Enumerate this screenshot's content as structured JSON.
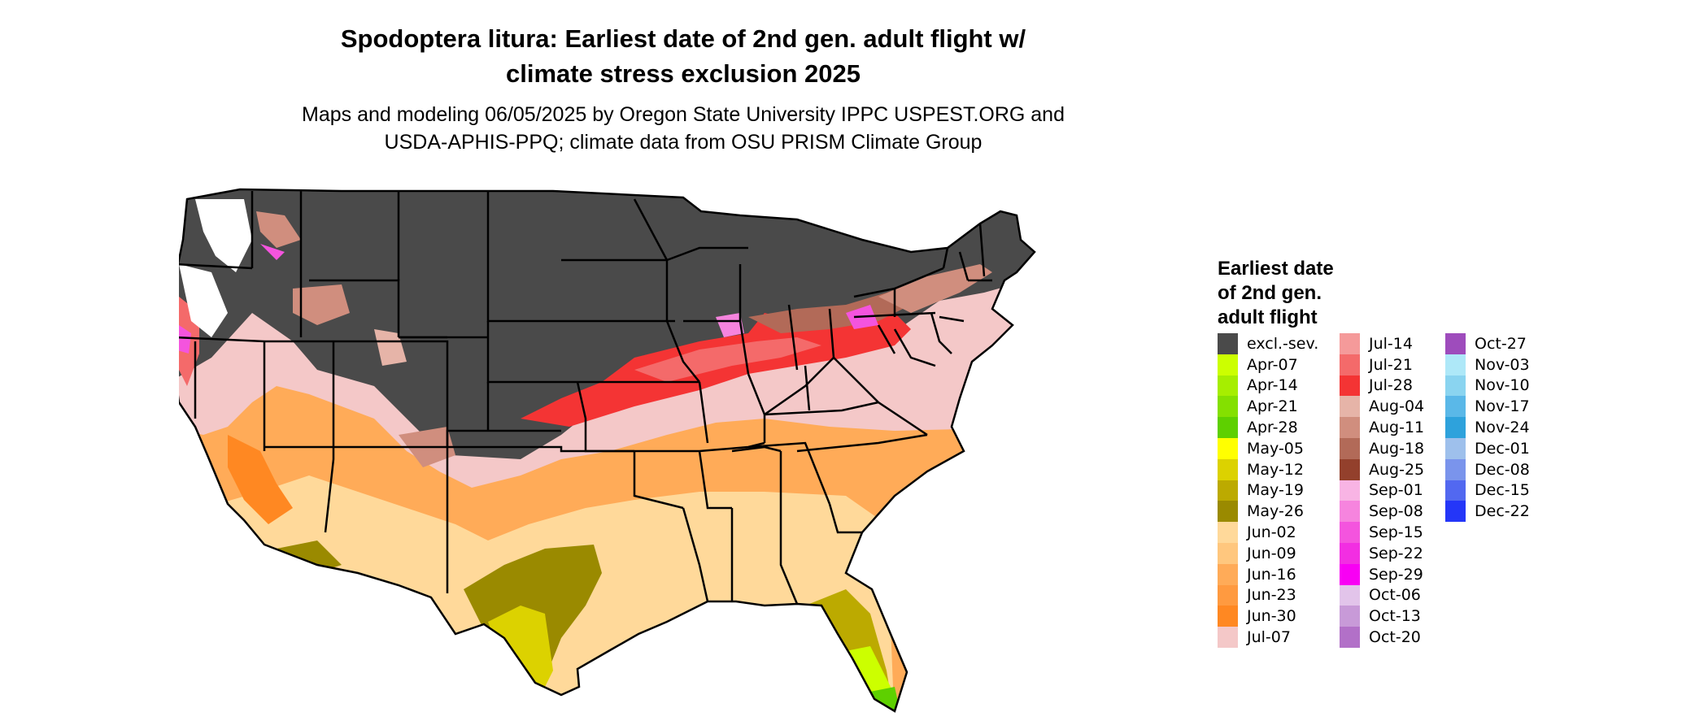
{
  "title_line1": "Spodoptera litura: Earliest date of 2nd gen. adult flight w/",
  "title_line2": "climate stress exclusion 2025",
  "subtitle_line1": "Maps and modeling 06/05/2025 by Oregon State University IPPC USPEST.ORG and",
  "subtitle_line2": "USDA-APHIS-PPQ; climate data from OSU PRISM Climate Group",
  "legend": {
    "title_line1": "Earliest date",
    "title_line2": "of 2nd gen.",
    "title_line3": "adult flight",
    "columns": [
      [
        {
          "label": "excl.-sev.",
          "color": "#4a4a4a"
        },
        {
          "label": "Apr-07",
          "color": "#ccff00"
        },
        {
          "label": "Apr-14",
          "color": "#a6ee00"
        },
        {
          "label": "Apr-21",
          "color": "#84e000"
        },
        {
          "label": "Apr-28",
          "color": "#5ed000"
        },
        {
          "label": "May-05",
          "color": "#ffff00"
        },
        {
          "label": "May-12",
          "color": "#dcd200"
        },
        {
          "label": "May-19",
          "color": "#bcaa00"
        },
        {
          "label": "May-26",
          "color": "#9a8a00"
        },
        {
          "label": "Jun-02",
          "color": "#ffd99a"
        },
        {
          "label": "Jun-09",
          "color": "#ffc77e"
        },
        {
          "label": "Jun-16",
          "color": "#ffab58"
        },
        {
          "label": "Jun-23",
          "color": "#ff9a40"
        },
        {
          "label": "Jun-30",
          "color": "#ff8822"
        },
        {
          "label": "Jul-07",
          "color": "#f4c8c8"
        }
      ],
      [
        {
          "label": "Jul-14",
          "color": "#f59a9a"
        },
        {
          "label": "Jul-21",
          "color": "#f46a6a"
        },
        {
          "label": "Jul-28",
          "color": "#f43434"
        },
        {
          "label": "Aug-04",
          "color": "#e6b4a8"
        },
        {
          "label": "Aug-11",
          "color": "#d08e7e"
        },
        {
          "label": "Aug-18",
          "color": "#b26a58"
        },
        {
          "label": "Aug-25",
          "color": "#93402c"
        },
        {
          "label": "Sep-01",
          "color": "#f8b4e4"
        },
        {
          "label": "Sep-08",
          "color": "#f684de"
        },
        {
          "label": "Sep-15",
          "color": "#f454de"
        },
        {
          "label": "Sep-22",
          "color": "#f22ee2"
        },
        {
          "label": "Sep-29",
          "color": "#f800f4"
        },
        {
          "label": "Oct-06",
          "color": "#e2c4ea"
        },
        {
          "label": "Oct-13",
          "color": "#c89ad8"
        },
        {
          "label": "Oct-20",
          "color": "#b270c8"
        }
      ],
      [
        {
          "label": "Oct-27",
          "color": "#9e4cbc"
        },
        {
          "label": "Nov-03",
          "color": "#aee8f8"
        },
        {
          "label": "Nov-10",
          "color": "#8ad4f0"
        },
        {
          "label": "Nov-17",
          "color": "#5ab8e8"
        },
        {
          "label": "Nov-24",
          "color": "#2ea2dc"
        },
        {
          "label": "Dec-01",
          "color": "#9ec0ec"
        },
        {
          "label": "Dec-08",
          "color": "#7a94ec"
        },
        {
          "label": "Dec-15",
          "color": "#5268f0"
        },
        {
          "label": "Dec-22",
          "color": "#2436f8"
        }
      ]
    ]
  }
}
